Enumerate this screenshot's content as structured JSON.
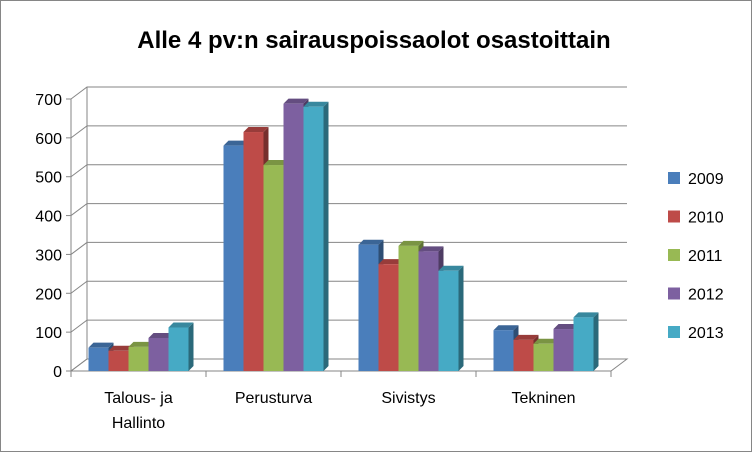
{
  "chart_data": {
    "type": "bar",
    "title": "Alle 4 pv:n sairauspoissaolot osastoittain",
    "xlabel": "",
    "ylabel": "",
    "ylim": [
      0,
      700
    ],
    "yticks": [
      0,
      100,
      200,
      300,
      400,
      500,
      600,
      700
    ],
    "categories": [
      [
        "Talous- ja",
        "Hallinto"
      ],
      [
        "Perusturva"
      ],
      [
        "Sivistys"
      ],
      [
        "Tekninen"
      ]
    ],
    "series": [
      {
        "name": "2009",
        "color": "#4A7EBB",
        "values": [
          60,
          580,
          325,
          105
        ]
      },
      {
        "name": "2010",
        "color": "#BE4B48",
        "values": [
          52,
          615,
          275,
          80
        ]
      },
      {
        "name": "2011",
        "color": "#98B954",
        "values": [
          62,
          530,
          322,
          70
        ]
      },
      {
        "name": "2012",
        "color": "#7D60A0",
        "values": [
          85,
          688,
          308,
          108
        ]
      },
      {
        "name": "2013",
        "color": "#46AAC5",
        "values": [
          112,
          680,
          258,
          138
        ]
      }
    ],
    "grid": true,
    "legend_position": "right"
  }
}
